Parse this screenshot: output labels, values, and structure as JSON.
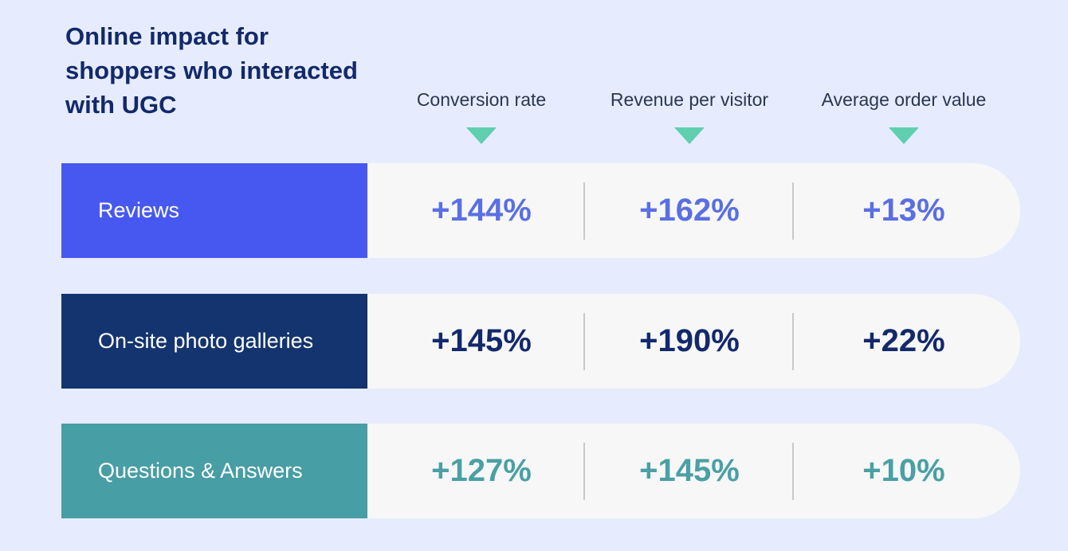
{
  "chart_data": {
    "type": "table",
    "title": "Online impact for shoppers who interacted with UGC",
    "columns": [
      "Conversion rate",
      "Revenue per visitor",
      "Average order value"
    ],
    "rows": [
      {
        "name": "Reviews",
        "values": [
          "+144%",
          "+162%",
          "+13%"
        ],
        "label_bg": "#4758f0",
        "value_color": "#5a6fe3"
      },
      {
        "name": "On-site photo galleries",
        "values": [
          "+145%",
          "+190%",
          "+22%"
        ],
        "label_bg": "#13346f",
        "value_color": "#13296b"
      },
      {
        "name": "Questions & Answers",
        "values": [
          "+127%",
          "+145%",
          "+10%"
        ],
        "label_bg": "#479ea4",
        "value_color": "#4aa0a4"
      }
    ]
  }
}
